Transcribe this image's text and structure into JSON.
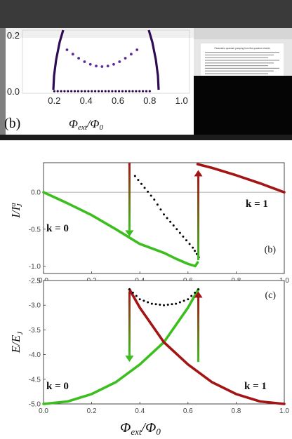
{
  "screenshot": {
    "left_window": {
      "panel_label": "(b)",
      "xlabel": "Φext/Φ0",
      "x_ticks": [
        "0.2",
        "0.4",
        "0.6",
        "0.8",
        "1.0"
      ],
      "y_ticks": [
        "0.0",
        "0.2"
      ]
    },
    "right_window": {
      "doc_title": "Parametric quantum pumping from flux quantum circuits"
    }
  },
  "chart_data": [
    {
      "type": "scatter",
      "panel": "(b)",
      "ylabel": "I/I_J^a",
      "xlim": [
        0,
        1
      ],
      "ylim": [
        -1.1,
        0.4
      ],
      "x_ticks": [
        "0.0",
        "0.2",
        "0.4",
        "0.6",
        "0.8",
        "1.0"
      ],
      "y_ticks": [
        "0.0",
        "-0.5",
        "-1.0"
      ],
      "colors": {
        "k0": "#3cbf1e",
        "k1": "#a31515",
        "dots": "#000000",
        "zero_line": "#999999"
      },
      "series": [
        {
          "name": "k = 0",
          "x": [
            0,
            0.1,
            0.2,
            0.3,
            0.36,
            0.4,
            0.5,
            0.55,
            0.6,
            0.63,
            0.64
          ],
          "y": [
            0,
            -0.15,
            -0.31,
            -0.5,
            -0.62,
            -0.7,
            -0.82,
            -0.9,
            -0.97,
            -1.0,
            -0.95
          ]
        },
        {
          "name": "k = 1",
          "x": [
            0.64,
            0.7,
            0.8,
            0.9,
            1.0
          ],
          "y": [
            0.38,
            0.33,
            0.23,
            0.12,
            0.0
          ]
        },
        {
          "name": "",
          "x": [
            0.38,
            0.42,
            0.46,
            0.5,
            0.54,
            0.58,
            0.62,
            0.645
          ],
          "y": [
            0.22,
            0.06,
            -0.1,
            -0.3,
            -0.45,
            -0.6,
            -0.75,
            -0.88
          ]
        }
      ],
      "arrows": [
        {
          "x": 0.357,
          "y_from": 0.4,
          "y_to": -0.6,
          "direction": "down"
        },
        {
          "x": 0.643,
          "y_from": -0.92,
          "y_to": 0.3,
          "direction": "up"
        }
      ],
      "annotations": [
        {
          "text": "k = 0"
        },
        {
          "text": "k = 1"
        }
      ]
    },
    {
      "type": "line",
      "panel": "(c)",
      "xlabel": "Φext/Φ0",
      "ylabel": "E/E_J",
      "xlim": [
        0,
        1
      ],
      "ylim": [
        -5.0,
        -2.5
      ],
      "x_ticks": [
        "0.0",
        "0.2",
        "0.4",
        "0.6",
        "0.8",
        "1.0"
      ],
      "y_ticks": [
        "-2.5",
        "-3.0",
        "-3.5",
        "-4.0",
        "-4.5",
        "-5.0"
      ],
      "series": [
        {
          "name": "k = 0",
          "x": [
            0,
            0.1,
            0.2,
            0.3,
            0.4,
            0.5,
            0.6,
            0.643
          ],
          "y": [
            -5.0,
            -4.95,
            -4.8,
            -4.56,
            -4.2,
            -3.75,
            -3.05,
            -2.68
          ]
        },
        {
          "name": "k = 1",
          "x": [
            0.357,
            0.4,
            0.5,
            0.6,
            0.7,
            0.8,
            0.9,
            1.0
          ],
          "y": [
            -2.68,
            -3.05,
            -3.75,
            -4.2,
            -4.56,
            -4.8,
            -4.95,
            -5.0
          ]
        },
        {
          "name": "",
          "x": [
            0.357,
            0.4,
            0.45,
            0.5,
            0.55,
            0.6,
            0.643
          ],
          "y": [
            -2.68,
            -2.88,
            -2.97,
            -3.0,
            -2.97,
            -2.88,
            -2.68
          ]
        }
      ],
      "arrows": [
        {
          "x": 0.357,
          "y_from": -2.72,
          "y_to": -4.15,
          "direction": "down"
        },
        {
          "x": 0.643,
          "y_from": -4.15,
          "y_to": -2.72,
          "direction": "up"
        }
      ],
      "annotations": [
        {
          "text": "k = 0"
        },
        {
          "text": "k = 1"
        }
      ]
    }
  ]
}
